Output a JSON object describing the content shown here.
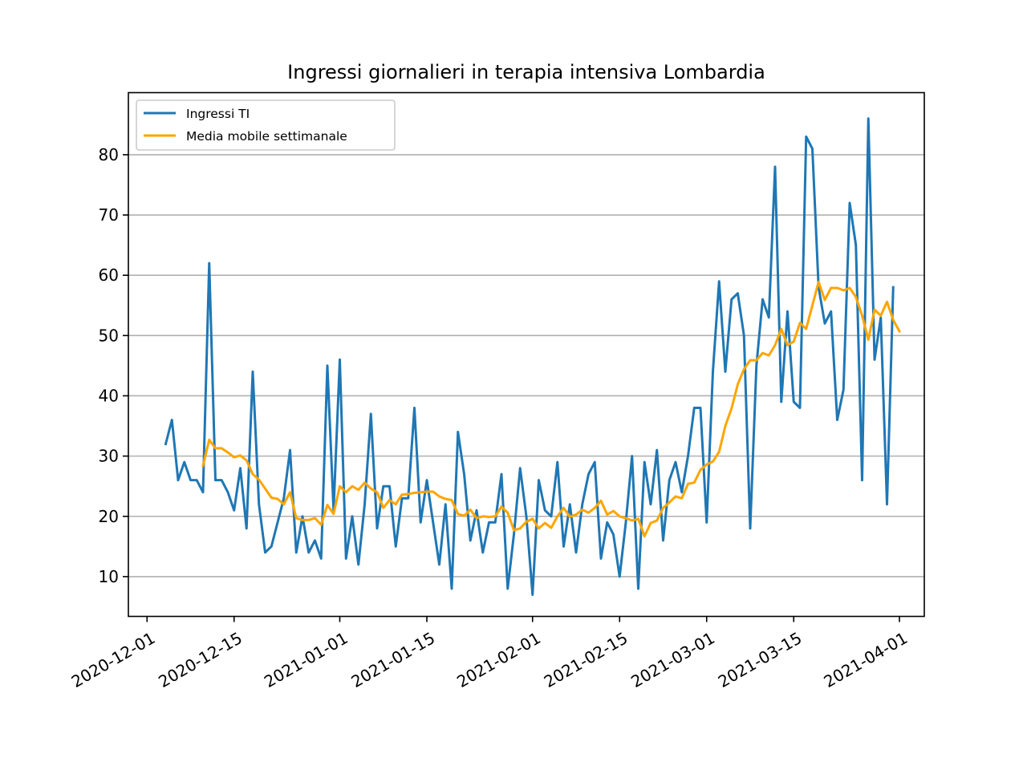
{
  "chart_data": {
    "type": "line",
    "title": "Ingressi giornalieri in terapia intensiva Lombardia",
    "xlabel": "",
    "ylabel": "",
    "x_start": "2020-12-04",
    "x_tick_labels": [
      "2020-12-01",
      "2020-12-15",
      "2021-01-01",
      "2021-01-15",
      "2021-02-01",
      "2021-02-15",
      "2021-03-01",
      "2021-03-15",
      "2021-04-01"
    ],
    "y_ticks": [
      10,
      20,
      30,
      40,
      50,
      60,
      70,
      80
    ],
    "xlim": [
      "2020-11-28",
      "2021-04-05"
    ],
    "ylim": [
      3.4,
      90.3
    ],
    "grid": "horizontal",
    "legend_position": "top-left",
    "series": [
      {
        "name": "Ingressi TI",
        "color": "#1f77b4",
        "values": [
          32,
          36,
          26,
          29,
          26,
          26,
          24,
          62,
          26,
          26,
          24,
          21,
          28,
          18,
          44,
          22,
          14,
          15,
          19,
          23,
          31,
          14,
          20,
          14,
          16,
          13,
          45,
          21,
          46,
          13,
          20,
          12,
          22,
          37,
          18,
          25,
          25,
          15,
          23,
          23,
          38,
          19,
          26,
          19,
          12,
          22,
          8,
          34,
          27,
          16,
          21,
          14,
          19,
          19,
          27,
          8,
          17,
          28,
          20,
          7,
          26,
          21,
          20,
          29,
          15,
          22,
          14,
          22,
          27,
          29,
          13,
          19,
          17,
          10,
          19,
          30,
          8,
          29,
          22,
          31,
          16,
          26,
          29,
          24,
          30,
          38,
          38,
          19,
          44,
          59,
          44,
          56,
          57,
          50,
          18,
          45,
          56,
          53,
          78,
          39,
          54,
          39,
          38,
          83,
          81,
          58,
          52,
          54,
          36,
          41,
          72,
          65,
          26,
          86,
          46,
          53,
          22,
          58
        ]
      },
      {
        "name": "Media mobile settimanale",
        "color": "#ffa500",
        "values": [
          null,
          null,
          null,
          null,
          null,
          null,
          28.4,
          32.7,
          31.3,
          31.3,
          30.6,
          29.8,
          30.1,
          29.3,
          27.0,
          26.1,
          24.6,
          23.1,
          22.9,
          22.0,
          24.0,
          19.7,
          19.4,
          19.4,
          19.7,
          18.6,
          21.9,
          20.4,
          25.0,
          24.0,
          25.0,
          24.4,
          25.6,
          24.6,
          24.0,
          21.4,
          22.7,
          22.0,
          23.6,
          23.7,
          23.9,
          24.0,
          24.1,
          24.1,
          23.3,
          22.9,
          22.7,
          20.4,
          20.1,
          21.1,
          19.7,
          20.0,
          19.9,
          20.0,
          21.6,
          20.6,
          17.7,
          18.0,
          19.1,
          19.6,
          18.0,
          18.9,
          18.1,
          20.0,
          21.4,
          19.9,
          20.3,
          21.1,
          20.6,
          21.4,
          22.6,
          20.3,
          20.9,
          20.0,
          19.7,
          19.3,
          19.6,
          16.7,
          18.9,
          19.3,
          21.4,
          22.3,
          23.3,
          23.0,
          25.4,
          25.6,
          27.7,
          28.6,
          29.1,
          30.7,
          35.0,
          37.9,
          41.9,
          44.4,
          45.9,
          45.9,
          47.1,
          46.7,
          48.4,
          51.1,
          48.4,
          49.0,
          52.1,
          51.1,
          55.0,
          58.9,
          55.9,
          57.9,
          57.9,
          57.5,
          57.9,
          56.4,
          53.3,
          49.3,
          54.3,
          53.3,
          55.6,
          52.6,
          50.7
        ]
      }
    ]
  }
}
